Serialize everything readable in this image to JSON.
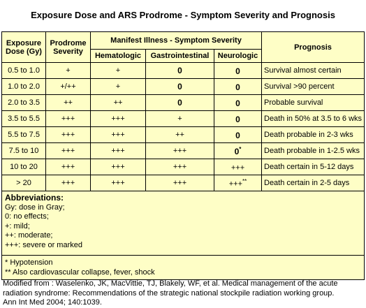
{
  "title": "Exposure Dose and ARS Prodrome - Symptom Severity and Prognosis",
  "headers": {
    "dose": "Exposure Dose (Gy)",
    "prodrome": "Prodrome Severity",
    "manifest": "Manifest Illness - Symptom Severity",
    "hematologic": "Hematologic",
    "gastrointestinal": "Gastrointestinal",
    "neurologic": "Neurologic",
    "prognosis": "Prognosis"
  },
  "rows": [
    {
      "dose": "0.5 to 1.0",
      "prodrome": "+",
      "hema": "+",
      "gastro": "0",
      "neuro": "0",
      "neuro_sup": "",
      "prognosis": "Survival almost certain"
    },
    {
      "dose": "1.0 to 2.0",
      "prodrome": "+/++",
      "hema": "+",
      "gastro": "0",
      "neuro": "0",
      "neuro_sup": "",
      "prognosis": "Survival >90 percent"
    },
    {
      "dose": "2.0 to 3.5",
      "prodrome": "++",
      "hema": "++",
      "gastro": "0",
      "neuro": "0",
      "neuro_sup": "",
      "prognosis": "Probable survival"
    },
    {
      "dose": "3.5 to 5.5",
      "prodrome": "+++",
      "hema": "+++",
      "gastro": "+",
      "neuro": "0",
      "neuro_sup": "",
      "prognosis": "Death in 50% at 3.5 to 6 wks"
    },
    {
      "dose": "5.5 to 7.5",
      "prodrome": "+++",
      "hema": "+++",
      "gastro": "++",
      "neuro": "0",
      "neuro_sup": "",
      "prognosis": "Death probable in 2-3 wks"
    },
    {
      "dose": "7.5 to 10",
      "prodrome": "+++",
      "hema": "+++",
      "gastro": "+++",
      "neuro": "0",
      "neuro_sup": "*",
      "prognosis": "Death probable in 1-2.5 wks"
    },
    {
      "dose": "10 to 20",
      "prodrome": "+++",
      "hema": "+++",
      "gastro": "+++",
      "neuro": "+++",
      "neuro_sup": "",
      "prognosis": "Death certain in 5-12 days"
    },
    {
      "dose": "> 20",
      "prodrome": "+++",
      "hema": "+++",
      "gastro": "+++",
      "neuro": "+++",
      "neuro_sup": "**",
      "prognosis": "Death certain in 2-5 days"
    }
  ],
  "abbreviations": {
    "heading": "Abbreviations:",
    "items": [
      "Gy:  dose in Gray;",
      "0: no effects;",
      "+: mild;",
      "++: moderate;",
      "+++: severe or marked"
    ]
  },
  "notes": [
    "* Hypotension",
    "** Also cardiovascular collapse, fever, shock"
  ],
  "source": {
    "line1": "Modified from : Waselenko, JK, MacVittie, TJ, Blakely, WF, et al.  Medical management of the acute",
    "line2": "radiation syndrome: Recommendations of the strategic national stockpile radiation working group.",
    "line3": "Ann Int Med 2004; 140:1039."
  }
}
